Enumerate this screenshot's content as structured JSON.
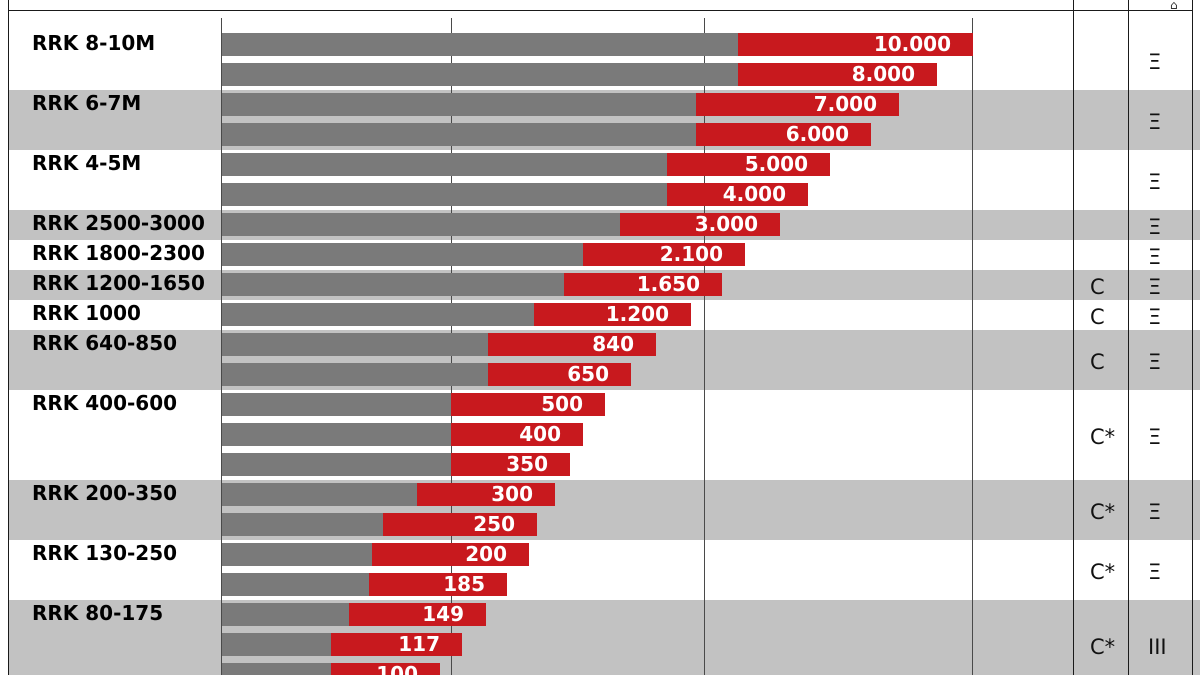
{
  "chart_data": {
    "type": "bar",
    "orientation": "horizontal",
    "stacked_two_tone": true,
    "colors": {
      "base": "#7a7a7a",
      "range": "#c8191e",
      "band_shade": "#c2c2c2"
    },
    "groups": [
      {
        "label": "RRK 8-10M",
        "values": [
          10000,
          8000
        ],
        "value_labels": [
          "10.000",
          "8.000"
        ],
        "class_marker": "",
        "icon": "Ξ"
      },
      {
        "label": "RRK 6-7M",
        "values": [
          7000,
          6000
        ],
        "value_labels": [
          "7.000",
          "6.000"
        ],
        "class_marker": "",
        "icon": "Ξ"
      },
      {
        "label": "RRK 4-5M",
        "values": [
          5000,
          4000
        ],
        "value_labels": [
          "5.000",
          "4.000"
        ],
        "class_marker": "",
        "icon": "Ξ"
      },
      {
        "label": "RRK 2500-3000",
        "values": [
          3000
        ],
        "value_labels": [
          "3.000"
        ],
        "class_marker": "",
        "icon": "Ξ"
      },
      {
        "label": "RRK 1800-2300",
        "values": [
          2100
        ],
        "value_labels": [
          "2.100"
        ],
        "class_marker": "",
        "icon": "Ξ"
      },
      {
        "label": "RRK 1200-1650",
        "values": [
          1650
        ],
        "value_labels": [
          "1.650"
        ],
        "class_marker": "C",
        "icon": "Ξ"
      },
      {
        "label": "RRK 1000",
        "values": [
          1200
        ],
        "value_labels": [
          "1.200"
        ],
        "class_marker": "C",
        "icon": "Ξ"
      },
      {
        "label": "RRK 640-850",
        "values": [
          840,
          650
        ],
        "value_labels": [
          "840",
          "650"
        ],
        "class_marker": "C",
        "icon": "Ξ"
      },
      {
        "label": "RRK 400-600",
        "values": [
          500,
          400,
          350
        ],
        "value_labels": [
          "500",
          "400",
          "350"
        ],
        "class_marker": "C*",
        "icon": "Ξ"
      },
      {
        "label": "RRK 200-350",
        "values": [
          300,
          250
        ],
        "value_labels": [
          "300",
          "250"
        ],
        "class_marker": "C*",
        "icon": "Ξ"
      },
      {
        "label": "RRK 130-250",
        "values": [
          200,
          185
        ],
        "value_labels": [
          "200",
          "185"
        ],
        "class_marker": "C*",
        "icon": "Ξ"
      },
      {
        "label": "RRK 80-175",
        "values": [
          149,
          117,
          100
        ],
        "value_labels": [
          "149",
          "117",
          "100"
        ],
        "class_marker": "C*",
        "icon": "III"
      }
    ]
  }
}
